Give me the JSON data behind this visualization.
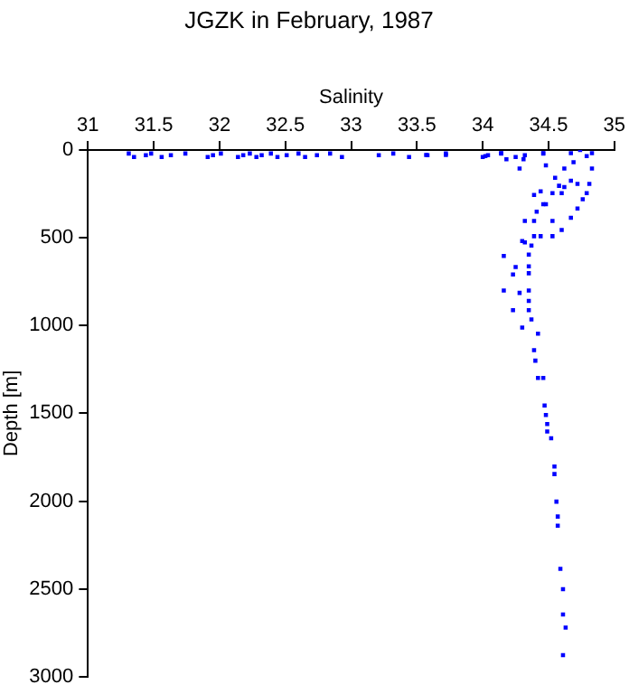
{
  "chart_data": {
    "type": "scatter",
    "title": "JGZK in February, 1987",
    "xlabel": "Salinity",
    "ylabel": "Depth [m]",
    "xlim": [
      31,
      35
    ],
    "xticks": [
      31,
      31.5,
      32,
      32.5,
      33,
      33.5,
      34,
      34.5,
      35
    ],
    "ylim": [
      3000,
      0
    ],
    "yticks": [
      0,
      500,
      1000,
      1500,
      2000,
      2500,
      3000
    ],
    "grid": false,
    "legend": false,
    "marker": "square",
    "series": [
      {
        "color": "#0000ff",
        "x": [
          31.31,
          31.35,
          31.44,
          31.48,
          31.56,
          31.63,
          31.74,
          31.91,
          31.95,
          32.01,
          32.14,
          32.18,
          32.23,
          32.28,
          32.32,
          32.39,
          32.44,
          32.51,
          32.6,
          32.65,
          32.74,
          32.84,
          32.93,
          33.21,
          33.32,
          33.44,
          33.58,
          33.72,
          34.0,
          34.04,
          34.14,
          34.25,
          34.32,
          34.46,
          34.46,
          34.47,
          34.48,
          34.49,
          34.49,
          34.52,
          34.42,
          34.39,
          34.4,
          34.42,
          34.3,
          34.37,
          34.23,
          34.35,
          34.35,
          34.16,
          34.28,
          34.35,
          34.23,
          34.35,
          34.25,
          34.35,
          34.16,
          34.35,
          34.32,
          34.37,
          34.3,
          34.39,
          34.44,
          34.53,
          34.6,
          34.32,
          34.39,
          34.41,
          34.53,
          34.67,
          34.72,
          34.76,
          34.79,
          34.46,
          34.48,
          34.39,
          34.44,
          34.53,
          34.6,
          34.58,
          34.62,
          34.55,
          34.67,
          34.72,
          34.81,
          34.83,
          34.62,
          34.69,
          34.79,
          34.67,
          34.83,
          34.74,
          34.46,
          34.48,
          34.28,
          34.14,
          34.02,
          33.72,
          33.57,
          34.31,
          34.18,
          34.545,
          34.545,
          34.56,
          34.57,
          34.57,
          34.59,
          34.61,
          34.61,
          34.63,
          34.61
        ],
        "values": [
          20,
          40,
          30,
          20,
          40,
          30,
          20,
          40,
          30,
          20,
          40,
          30,
          20,
          40,
          30,
          20,
          40,
          30,
          20,
          40,
          30,
          20,
          40,
          30,
          20,
          40,
          30,
          20,
          40,
          30,
          20,
          40,
          30,
          20,
          1298,
          1456,
          1509,
          1561,
          1603,
          1642,
          1298,
          1140,
          1200,
          1046,
          1011,
          965,
          912,
          912,
          860,
          800,
          814,
          800,
          709,
          702,
          667,
          663,
          603,
          596,
          526,
          544,
          519,
          491,
          491,
          491,
          456,
          404,
          404,
          351,
          404,
          386,
          333,
          281,
          246,
          309,
          309,
          256,
          235,
          246,
          246,
          204,
          211,
          158,
          175,
          193,
          193,
          105,
          105,
          70,
          35,
          18,
          18,
          0,
          18,
          88,
          105,
          18,
          35,
          28,
          28,
          53,
          53,
          1803,
          1846,
          2003,
          2088,
          2140,
          2386,
          2502,
          2646,
          2720,
          2877
        ]
      }
    ]
  }
}
